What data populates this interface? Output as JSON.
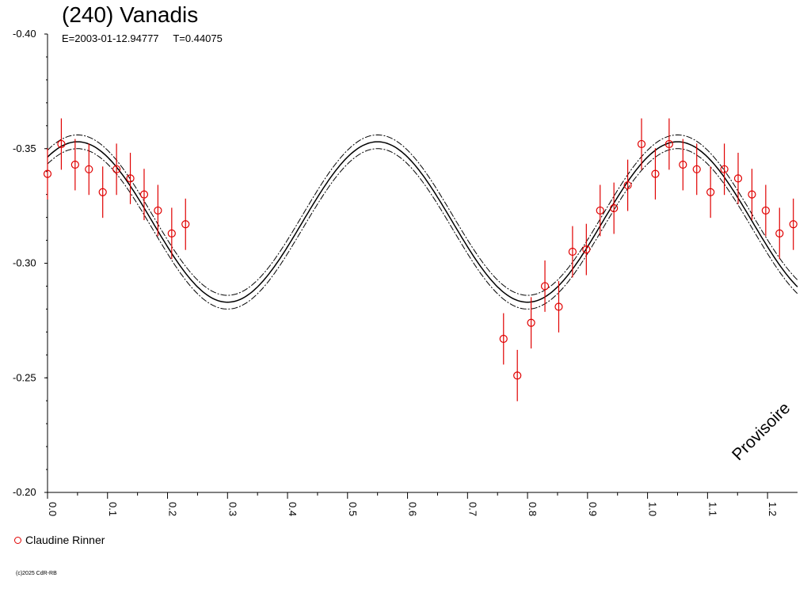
{
  "chart_data": {
    "type": "scatter",
    "title": "(240) Vanadis",
    "subtitle": "E=2003-01-12.94777     T=0.44075",
    "xlim": [
      0.0,
      1.25
    ],
    "ylim": [
      -0.4,
      -0.2
    ],
    "y_inverted": true,
    "x_ticks": [
      "0.0",
      "0.1",
      "0.2",
      "0.3",
      "0.4",
      "0.5",
      "0.6",
      "0.7",
      "0.8",
      "0.9",
      "1.0",
      "1.1",
      "1.2"
    ],
    "y_ticks": [
      "-0.40",
      "-0.35",
      "-0.30",
      "-0.25",
      "-0.20"
    ],
    "grid": false,
    "legend": {
      "position": "bottom-left",
      "entries": [
        "Claudine Rinner"
      ]
    },
    "watermark": "Provisoire",
    "copyright": "(c)2025 CdR-RB",
    "fit": {
      "description": "sinusoidal fit with upper and lower envelopes",
      "mean": -0.318,
      "amplitude": 0.035,
      "period": 0.5,
      "max_phase": 0.05,
      "envelope": 0.003
    },
    "series": [
      {
        "name": "Claudine Rinner",
        "color": "#e00000",
        "marker": "open-circle",
        "x": [
          0.0,
          0.023,
          0.046,
          0.069,
          0.092,
          0.115,
          0.138,
          0.161,
          0.184,
          0.207,
          0.23,
          0.76,
          0.783,
          0.806,
          0.829,
          0.852,
          0.875,
          0.898,
          0.921,
          0.944,
          0.967,
          0.99,
          1.013,
          1.036,
          1.059,
          1.082,
          1.105,
          1.128,
          1.151,
          1.174,
          1.197,
          1.22,
          1.243
        ],
        "y": [
          -0.339,
          -0.352,
          -0.343,
          -0.341,
          -0.331,
          -0.341,
          -0.337,
          -0.33,
          -0.323,
          -0.313,
          -0.317,
          -0.267,
          -0.251,
          -0.274,
          -0.29,
          -0.281,
          -0.305,
          -0.306,
          -0.323,
          -0.324,
          -0.334,
          -0.352,
          -0.339,
          -0.352,
          -0.343,
          -0.341,
          -0.331,
          -0.341,
          -0.337,
          -0.33,
          -0.323,
          -0.313,
          -0.317
        ],
        "err": [
          0.008,
          0.008,
          0.008,
          0.008,
          0.008,
          0.008,
          0.008,
          0.008,
          0.008,
          0.008,
          0.008,
          0.008,
          0.008,
          0.008,
          0.008,
          0.008,
          0.008,
          0.008,
          0.008,
          0.008,
          0.008,
          0.008,
          0.008,
          0.008,
          0.008,
          0.008,
          0.008,
          0.008,
          0.008,
          0.008,
          0.008,
          0.008,
          0.008
        ]
      }
    ]
  }
}
